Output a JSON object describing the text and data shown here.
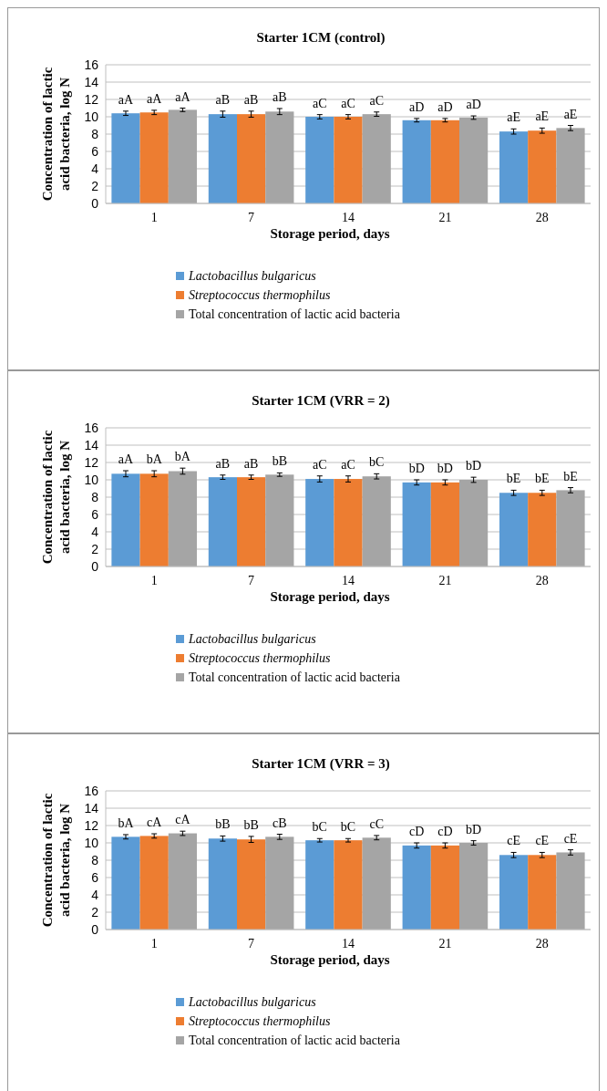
{
  "chart_data": [
    {
      "type": "bar",
      "title": "Starter 1CM (control)",
      "xlabel": "Storage period, days",
      "ylabel": "Concentration of lactic acid bacteria, log N",
      "categories": [
        "1",
        "7",
        "14",
        "21",
        "28"
      ],
      "ylim": [
        0,
        16
      ],
      "yticks": [
        0,
        2,
        4,
        6,
        8,
        10,
        12,
        14,
        16
      ],
      "grid": "y",
      "legend": "bottom",
      "series": [
        {
          "name": "Lactobacillus bulgaricus",
          "color": "#5b9bd5",
          "values": [
            10.4,
            10.3,
            10.0,
            9.6,
            8.3
          ],
          "errors": [
            0.25,
            0.35,
            0.25,
            0.2,
            0.3
          ],
          "value_labels": [
            "aA",
            "aB",
            "aC",
            "aD",
            "aE"
          ]
        },
        {
          "name": "Streptococcus thermophilus",
          "color": "#ed7d31",
          "values": [
            10.5,
            10.3,
            10.0,
            9.6,
            8.4
          ],
          "errors": [
            0.25,
            0.35,
            0.25,
            0.2,
            0.3
          ],
          "value_labels": [
            "aA",
            "aB",
            "aC",
            "aD",
            "aE"
          ]
        },
        {
          "name": "Total concentration of lactic acid bacteria",
          "color": "#a5a5a5",
          "values": [
            10.8,
            10.6,
            10.3,
            9.9,
            8.7
          ],
          "errors": [
            0.2,
            0.35,
            0.25,
            0.2,
            0.3
          ],
          "value_labels": [
            "aA",
            "aB",
            "aC",
            "aD",
            "aE"
          ]
        }
      ]
    },
    {
      "type": "bar",
      "title": "Starter 1CM (VRR = 2)",
      "xlabel": "Storage period, days",
      "ylabel": "Concentration of lactic acid bacteria, log N",
      "categories": [
        "1",
        "7",
        "14",
        "21",
        "28"
      ],
      "ylim": [
        0,
        16
      ],
      "yticks": [
        0,
        2,
        4,
        6,
        8,
        10,
        12,
        14,
        16
      ],
      "grid": "y",
      "legend": "bottom",
      "series": [
        {
          "name": "Lactobacillus bulgaricus",
          "color": "#5b9bd5",
          "values": [
            10.7,
            10.3,
            10.1,
            9.7,
            8.5
          ],
          "errors": [
            0.35,
            0.25,
            0.35,
            0.3,
            0.3
          ],
          "value_labels": [
            "aA",
            "aB",
            "aC",
            "bD",
            "bE"
          ]
        },
        {
          "name": "Streptococcus thermophilus",
          "color": "#ed7d31",
          "values": [
            10.7,
            10.3,
            10.1,
            9.7,
            8.5
          ],
          "errors": [
            0.35,
            0.25,
            0.35,
            0.3,
            0.3
          ],
          "value_labels": [
            "bA",
            "aB",
            "aC",
            "bD",
            "bE"
          ]
        },
        {
          "name": "Total concentration of lactic acid bacteria",
          "color": "#a5a5a5",
          "values": [
            11.0,
            10.6,
            10.4,
            10.0,
            8.8
          ],
          "errors": [
            0.35,
            0.2,
            0.3,
            0.3,
            0.3
          ],
          "value_labels": [
            "bA",
            "bB",
            "bC",
            "bD",
            "bE"
          ]
        }
      ]
    },
    {
      "type": "bar",
      "title": "Starter 1CM (VRR = 3)",
      "xlabel": "Storage period, days",
      "ylabel": "Concentration of lactic acid bacteria, log N",
      "categories": [
        "1",
        "7",
        "14",
        "21",
        "28"
      ],
      "ylim": [
        0,
        16
      ],
      "yticks": [
        0,
        2,
        4,
        6,
        8,
        10,
        12,
        14,
        16
      ],
      "grid": "y",
      "legend": "bottom",
      "series": [
        {
          "name": "Lactobacillus bulgaricus",
          "color": "#5b9bd5",
          "values": [
            10.7,
            10.5,
            10.3,
            9.7,
            8.6
          ],
          "errors": [
            0.25,
            0.3,
            0.2,
            0.3,
            0.3
          ],
          "value_labels": [
            "bA",
            "bB",
            "bC",
            "cD",
            "cE"
          ]
        },
        {
          "name": "Streptococcus thermophilus",
          "color": "#ed7d31",
          "values": [
            10.8,
            10.4,
            10.3,
            9.7,
            8.6
          ],
          "errors": [
            0.25,
            0.35,
            0.2,
            0.3,
            0.3
          ],
          "value_labels": [
            "cA",
            "bB",
            "bC",
            "cD",
            "cE"
          ]
        },
        {
          "name": "Total concentration of lactic acid bacteria",
          "color": "#a5a5a5",
          "values": [
            11.1,
            10.7,
            10.6,
            10.0,
            8.9
          ],
          "errors": [
            0.25,
            0.3,
            0.25,
            0.25,
            0.3
          ],
          "value_labels": [
            "cA",
            "cB",
            "cC",
            "bD",
            "cE"
          ]
        }
      ]
    }
  ]
}
